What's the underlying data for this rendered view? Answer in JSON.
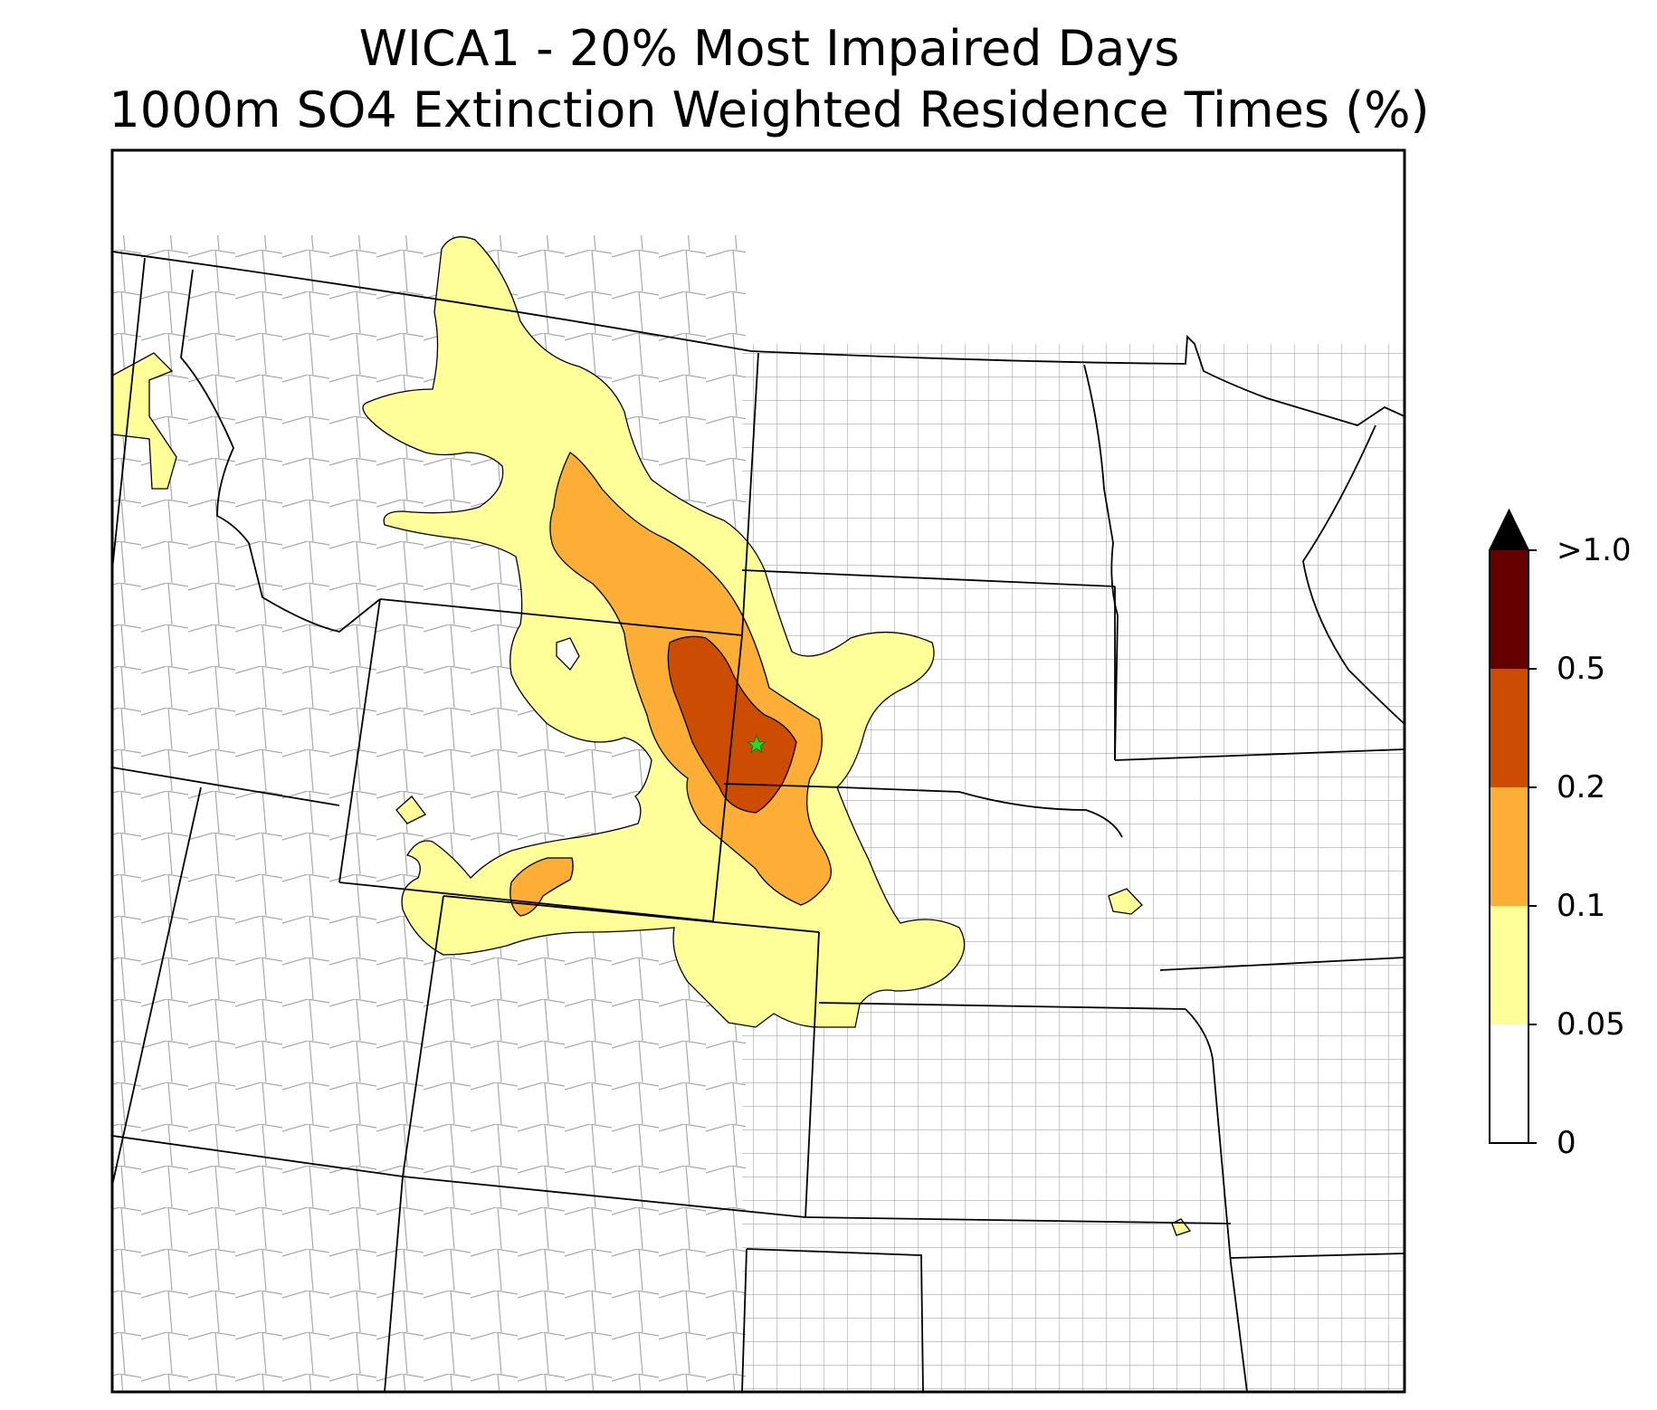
{
  "title": {
    "line1": "WICA1 - 20% Most Impaired Days",
    "line2": "1000m SO4 Extinction Weighted Residence Times (%)"
  },
  "colorbar": {
    "ticks": [
      "0",
      "0.05",
      "0.1",
      "0.2",
      "0.5",
      ">1.0"
    ],
    "colors": {
      "0_to_0.05": "#ffffff",
      "0.05_to_0.1": "#ffff99",
      "0.1_to_0.2": "#fdae37",
      "0.2_to_0.5": "#cc4c02",
      "0.5_to_1.0": "#660000",
      "over_1.0": "#000000"
    },
    "extend": "max"
  },
  "map": {
    "receptor_marker": "green-star",
    "state_boundary_color": "#000000",
    "county_boundary_color": "#a0a0a0"
  }
}
